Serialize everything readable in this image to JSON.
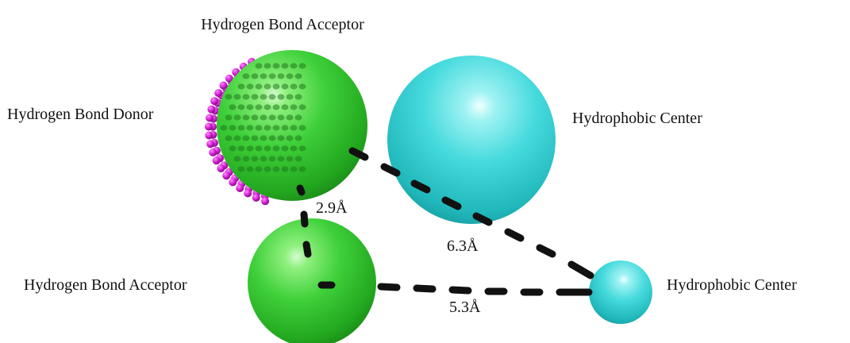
{
  "labels": {
    "acceptor_top": "Hydrogen Bond Acceptor",
    "donor": "Hydrogen Bond Donor",
    "hydrophobic_large": "Hydrophobic Center",
    "acceptor_bottom": "Hydrogen Bond Acceptor",
    "hydrophobic_small": "Hydrophobic Center"
  },
  "distances": {
    "acceptor_to_acceptor": "2.9Å",
    "acceptor_to_hydrophobic": "6.3Å",
    "acceptor_bottom_to_hydrophobic": "5.3Å"
  },
  "colors": {
    "acceptor": "#2ecc2e",
    "hydrophobic": "#3ed9dc",
    "donor": "#cc22cc",
    "distance_line": "#111111"
  }
}
